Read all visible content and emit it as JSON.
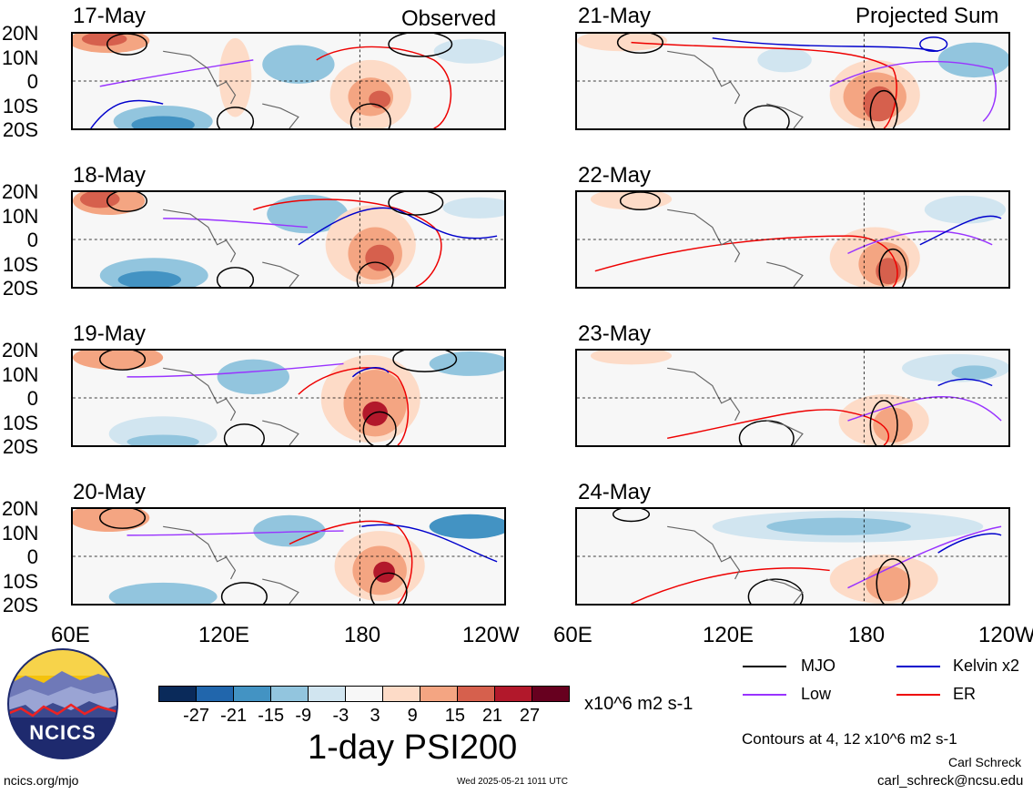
{
  "panels_left": {
    "tag": "Observed",
    "dates": [
      "17-May",
      "18-May",
      "19-May",
      "20-May"
    ]
  },
  "panels_right": {
    "tag": "Projected Sum",
    "dates": [
      "21-May",
      "22-May",
      "23-May",
      "24-May"
    ]
  },
  "lat_labels": [
    "20N",
    "10N",
    "0",
    "10S",
    "20S"
  ],
  "lon_labels": [
    "60E",
    "120E",
    "180",
    "120W"
  ],
  "colorbar": {
    "colors": [
      "#0a2a5a",
      "#2166ac",
      "#4393c3",
      "#92c5de",
      "#d1e5f0",
      "#f7f7f7",
      "#fddbc7",
      "#f4a582",
      "#d6604d",
      "#b2182b",
      "#67001f"
    ],
    "labels": [
      "-27",
      "-21",
      "-15",
      "-9",
      "-3",
      "3",
      "9",
      "15",
      "21",
      "27"
    ],
    "units": "x10^6 m2 s-1"
  },
  "title": "1-day PSI200",
  "legend": {
    "items": [
      {
        "label": "MJO",
        "color": "#000000"
      },
      {
        "label": "Kelvin x2",
        "color": "#0000cc"
      },
      {
        "label": "Low",
        "color": "#9933ff"
      },
      {
        "label": "ER",
        "color": "#ee0000"
      }
    ],
    "contours_note": "Contours at 4, 12 x10^6 m2 s-1"
  },
  "logo_text": "NCICS",
  "author": "Carl Schreck",
  "email": "carl_schreck@ncsu.edu",
  "site": "ncics.org/mjo",
  "timestamp": "Wed 2025-05-21 1011 UTC"
}
